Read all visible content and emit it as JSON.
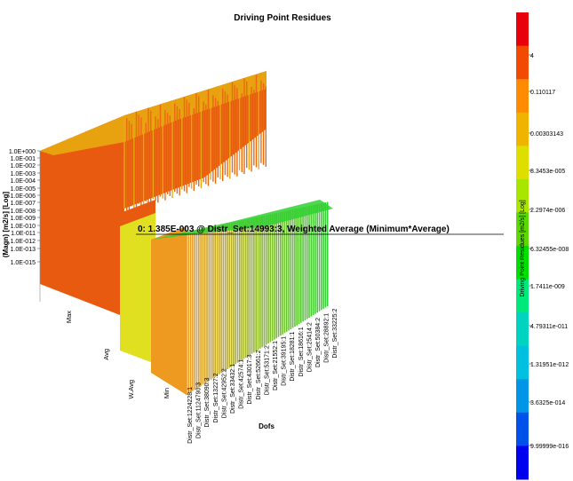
{
  "chart_data": {
    "type": "bar",
    "title": "Driving Point Residues",
    "xlabel": "Dofs",
    "ylabel": "(Magn) [m2/s] [Log]",
    "y_scale": "log",
    "ylim": [
      1e-15,
      1.0
    ],
    "y_ticks": [
      "1.0E+000",
      "1.0E-001",
      "1.0E-002",
      "1.0E-003",
      "1.0E-004",
      "1.0E-005",
      "1.0E-006",
      "1.0E-007",
      "1.0E-008",
      "1.0E-009",
      "1.0E-010",
      "1.0E-011",
      "1.0E-012",
      "1.0E-013",
      "1.0E-015"
    ],
    "rows": [
      "Max",
      "Avg",
      "W.Avg",
      "Min"
    ],
    "dofs": [
      "Distr_Set:1224228:1",
      "Distr_Set:1124790:3",
      "Distr_Set:38090:3",
      "Distr_Set:13227:2",
      "Distr_Set:42952:2",
      "Distr_Set:33432:1",
      "Distr_Set:42574:1",
      "Distr_Set:43017:3",
      "Distr_Set:52661:2",
      "Distr_Set:53171:2",
      "Distr_Set:21552:1",
      "Distr_Set:39195:1",
      "Distr_Set:18281:1",
      "Distr_Set:18616:1",
      "Distr_Set:25414:2",
      "Distr_Set:50384:2",
      "Distr_Set:28892:1",
      "Distr_Set:33225:2"
    ],
    "tooltip": "0: 1.385E-003 @ Distr_Set:14993:3, Weighted Average (Minimum*Average)",
    "colorbar": {
      "label": "Driving Point Residues [m2/s] [Log]",
      "ticks": [
        "4",
        "0.110117",
        "0.00303143",
        "8.3453e-005",
        "2.2974e-006",
        "6.32455e-008",
        "1.7411e-009",
        "4.79311e-011",
        "1.31951e-012",
        "3.6325e-014",
        "9.99999e-016"
      ],
      "colors": [
        "#e8000a",
        "#f24a00",
        "#ff8c00",
        "#f0b400",
        "#dede00",
        "#a8e600",
        "#5ad800",
        "#00e000",
        "#00e87a",
        "#00d4c0",
        "#00c0e0",
        "#0096e8",
        "#0050ea",
        "#0000f0"
      ]
    },
    "series_colors": {
      "max": "#e85a10",
      "avg": "#e86010",
      "wavg": "#e0e020",
      "min": "#ee9a20",
      "max_top": "#e8a810",
      "min_top": "#30d030"
    }
  }
}
